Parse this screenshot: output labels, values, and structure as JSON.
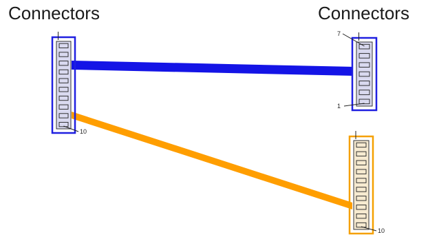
{
  "labels": {
    "left_title": "Connectors",
    "right_title": "Connectors"
  },
  "connectors": [
    {
      "id": "left-connector",
      "pins": 10,
      "end_label": "10",
      "start_label": "",
      "frame_color": "#1f1fe0",
      "fill": "#d9d9ef"
    },
    {
      "id": "right-top-connector",
      "pins": 7,
      "end_label": "1",
      "start_label": "7",
      "frame_color": "#1f1fe0",
      "fill": "#d9d9ef"
    },
    {
      "id": "right-bottom-connector",
      "pins": 10,
      "end_label": "10",
      "start_label": "",
      "frame_color": "#f5a000",
      "fill": "#f6ead0"
    }
  ],
  "cables": [
    {
      "id": "blue-cable",
      "color": "#1414e6"
    },
    {
      "id": "orange-cable",
      "color": "#ff9e00"
    }
  ]
}
